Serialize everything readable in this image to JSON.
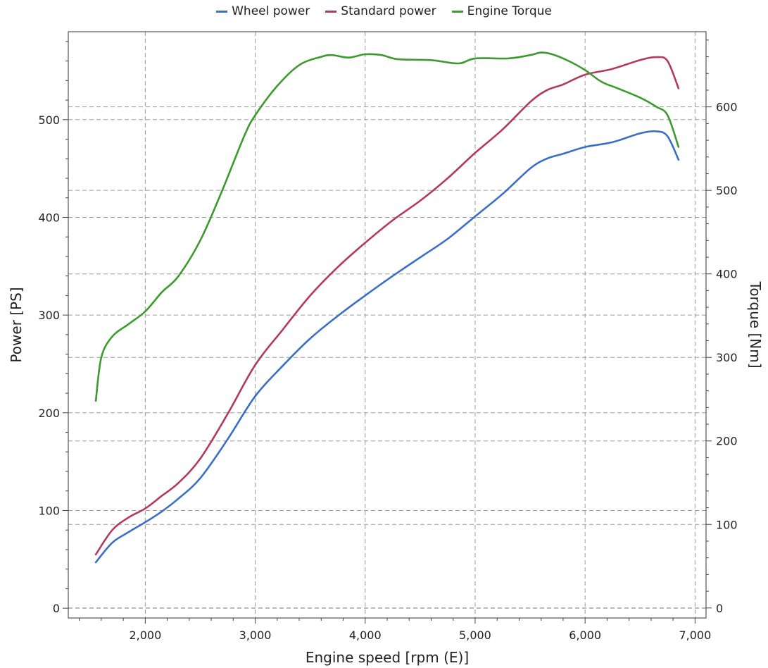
{
  "chart_data": {
    "type": "line",
    "xlabel": "Engine speed [rpm (E)]",
    "ylabel_left": "Power [PS]",
    "ylabel_right": "Torque [Nm]",
    "xlim": [
      1300,
      7100
    ],
    "ylim_left": [
      -10,
      590
    ],
    "ylim_right": [
      -12,
      690
    ],
    "x_ticks": [
      2000,
      3000,
      4000,
      5000,
      6000,
      7000
    ],
    "x_tick_labels": [
      "2,000",
      "3,000",
      "4,000",
      "5,000",
      "6,000",
      "7,000"
    ],
    "y_left_ticks": [
      0,
      100,
      200,
      300,
      400,
      500
    ],
    "y_left_tick_labels": [
      "0",
      "100",
      "200",
      "300",
      "400",
      "500"
    ],
    "y_right_ticks": [
      0,
      100,
      200,
      300,
      400,
      500,
      600
    ],
    "y_right_tick_labels": [
      "0",
      "100",
      "200",
      "300",
      "400",
      "500",
      "600"
    ],
    "grid": true,
    "legend_position": "top-center",
    "series": [
      {
        "name": "Wheel power",
        "axis": "left",
        "color": "#3a6fc4",
        "x": [
          1550,
          1700,
          1850,
          2000,
          2150,
          2300,
          2500,
          2750,
          3000,
          3250,
          3500,
          3750,
          4000,
          4250,
          4500,
          4750,
          5000,
          5250,
          5500,
          5650,
          5800,
          6000,
          6250,
          6500,
          6650,
          6750,
          6850
        ],
        "y": [
          47,
          67,
          78,
          88,
          99,
          112,
          133,
          173,
          217,
          248,
          276,
          299,
          320,
          340,
          359,
          378,
          401,
          424,
          450,
          460,
          465,
          472,
          477,
          486,
          488,
          483,
          459
        ]
      },
      {
        "name": "Standard power",
        "axis": "left",
        "color": "#b23a5c",
        "x": [
          1550,
          1700,
          1850,
          2000,
          2150,
          2300,
          2500,
          2750,
          3000,
          3250,
          3500,
          3750,
          4000,
          4250,
          4500,
          4750,
          5000,
          5250,
          5500,
          5650,
          5800,
          6000,
          6250,
          6500,
          6650,
          6750,
          6850
        ],
        "y": [
          55,
          80,
          93,
          102,
          115,
          128,
          153,
          199,
          249,
          285,
          320,
          349,
          374,
          397,
          417,
          440,
          466,
          490,
          518,
          530,
          536,
          546,
          552,
          561,
          564,
          560,
          532
        ]
      },
      {
        "name": "Engine Torque",
        "axis": "right",
        "color": "#3c9a2e",
        "x": [
          1550,
          1600,
          1700,
          1850,
          2000,
          2150,
          2300,
          2500,
          2700,
          2900,
          3000,
          3200,
          3400,
          3600,
          3700,
          3850,
          4000,
          4150,
          4300,
          4600,
          4850,
          5000,
          5300,
          5500,
          5600,
          5700,
          5850,
          6000,
          6150,
          6300,
          6500,
          6650,
          6750,
          6850
        ],
        "y": [
          248,
          300,
          325,
          340,
          355,
          378,
          397,
          440,
          500,
          565,
          590,
          625,
          650,
          660,
          662,
          659,
          663,
          662,
          657,
          656,
          652,
          658,
          658,
          662,
          665,
          663,
          655,
          644,
          630,
          622,
          611,
          600,
          590,
          552
        ]
      }
    ]
  }
}
